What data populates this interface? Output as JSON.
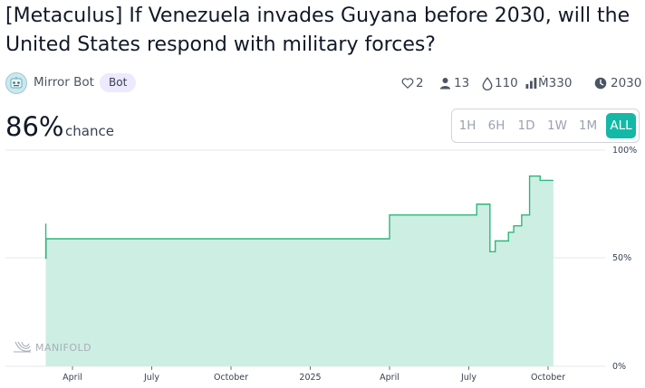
{
  "title": "[Metaculus] If Venezuela invades Guyana before 2030, will the United States respond with military forces?",
  "author": {
    "name": "Mirror Bot",
    "badge": "Bot"
  },
  "stats": {
    "likes": "2",
    "traders": "13",
    "tips": "110",
    "volume": "Ṁ330",
    "close": "2030"
  },
  "probability": {
    "value": "86%",
    "label": "chance"
  },
  "range_buttons": [
    "1H",
    "6H",
    "1D",
    "1W",
    "1M",
    "ALL"
  ],
  "active_range": "ALL",
  "watermark": "MANIFOLD",
  "colors": {
    "accent": "#14b8a6",
    "line": "#2fb77d",
    "fill": "#cdeee2",
    "badge": "#ede9fe"
  },
  "chart_data": {
    "type": "area",
    "xlabel": "",
    "ylabel": "",
    "y_unit": "%",
    "ylim": [
      0,
      100
    ],
    "y_ticks": [
      "100%",
      "50%",
      "0%"
    ],
    "x_ticks": [
      "April",
      "July",
      "October",
      "2025",
      "April",
      "July",
      "October"
    ],
    "series": [
      {
        "values_note_x": "months since Jan 2024",
        "x": [
          1.99,
          1.99,
          2.0,
          2.0,
          15.0,
          15.0,
          18.3,
          18.3,
          18.8,
          18.8,
          19.0,
          19.0,
          19.5,
          19.5,
          19.7,
          19.7,
          20.0,
          20.0,
          20.3,
          20.3,
          20.7,
          20.7,
          21.2,
          21.2
        ],
        "y": [
          66,
          50,
          50,
          59,
          59,
          70,
          70,
          75,
          75,
          53,
          53,
          58,
          58,
          62,
          62,
          65,
          65,
          70,
          70,
          88,
          88,
          86,
          86,
          86
        ]
      }
    ]
  }
}
